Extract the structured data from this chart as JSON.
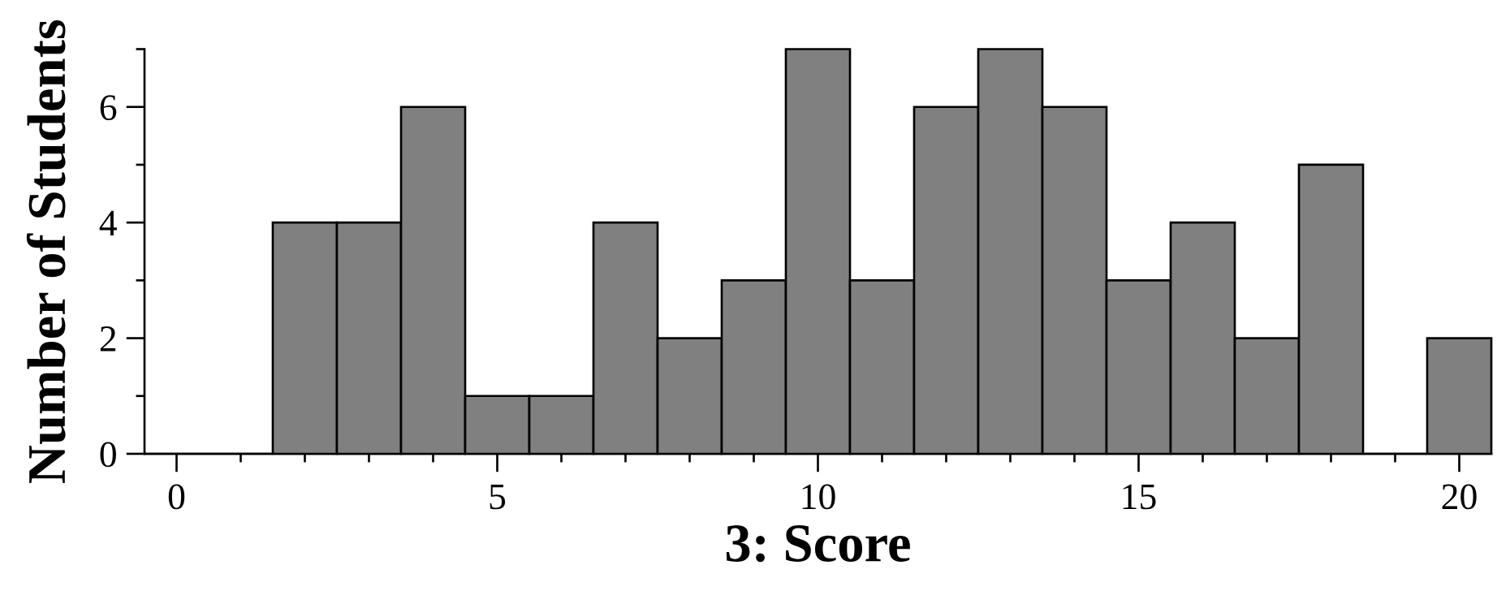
{
  "chart_data": {
    "type": "histogram",
    "xlabel": "3: Score",
    "ylabel": "Number of Students",
    "bins": [
      -0.5,
      0.5,
      1.5,
      2.5,
      3.5,
      4.5,
      5.5,
      6.5,
      7.5,
      8.5,
      9.5,
      10.5,
      11.5,
      12.5,
      13.5,
      14.5,
      15.5,
      16.5,
      17.5,
      18.5,
      19.5,
      20.5
    ],
    "values": [
      0,
      0,
      4,
      4,
      6,
      1,
      1,
      4,
      2,
      3,
      7,
      3,
      6,
      7,
      6,
      3,
      4,
      2,
      5,
      0,
      2
    ],
    "color": "#808080",
    "xlim": [
      -0.5,
      20.5
    ],
    "ylim": [
      0,
      7
    ],
    "xticks": [
      0,
      {
        "value": 1,
        "label": null
      },
      {
        "value": 2,
        "label": null
      },
      {
        "value": 3,
        "label": null
      },
      {
        "value": 4,
        "label": null
      },
      5,
      {
        "value": 6,
        "label": null
      },
      {
        "value": 7,
        "label": null
      },
      {
        "value": 8,
        "label": null
      },
      {
        "value": 9,
        "label": null
      },
      10,
      {
        "value": 11,
        "label": null
      },
      {
        "value": 12,
        "label": null
      },
      {
        "value": 13,
        "label": null
      },
      {
        "value": 14,
        "label": null
      },
      15,
      {
        "value": 16,
        "label": null
      },
      {
        "value": 17,
        "label": null
      },
      {
        "value": 18,
        "label": null
      },
      {
        "value": 19,
        "label": null
      },
      20
    ],
    "yticks": [
      0,
      {
        "value": 1,
        "label": null
      },
      2,
      {
        "value": 3,
        "label": null
      },
      4,
      {
        "value": 5,
        "label": null
      },
      6,
      {
        "value": 7,
        "label": null
      }
    ]
  }
}
